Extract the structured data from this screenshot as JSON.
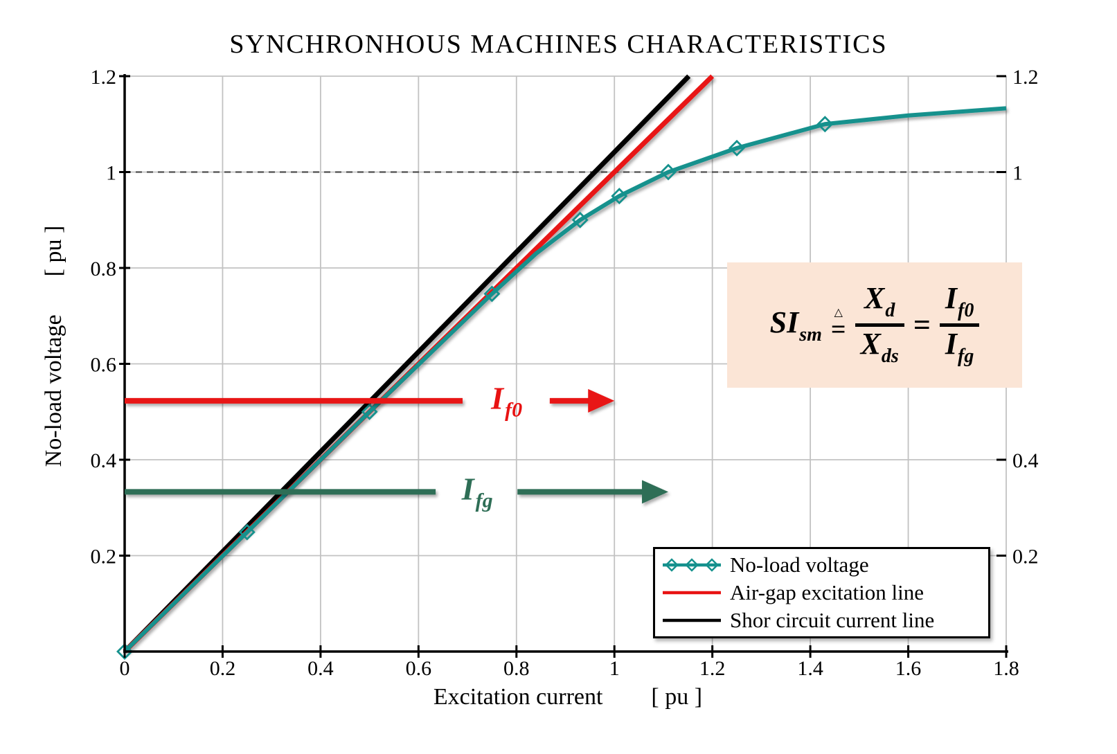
{
  "title": "SYNCHRONHOUS MACHINES CHARACTERISTICS",
  "colors": {
    "teal": "#15918d",
    "red": "#e81212",
    "dark_green": "#2e6e56",
    "black": "#000000",
    "grid": "#c2c2c2",
    "ref_gray": "#4d4d4d",
    "formula_bg": "#fbe5d6"
  },
  "axes": {
    "x_label": "Excitation current",
    "x_unit": "[ pu ]",
    "y_label": "No-load voltage",
    "y_unit": "[ pu ]",
    "x_tick_labels": [
      "0",
      "0.2",
      "0.4",
      "0.6",
      "0.8",
      "1",
      "1.2",
      "1.4",
      "1.6",
      "1.8"
    ],
    "y_tick_labels_left": [
      "0.2",
      "0.4",
      "0.6",
      "0.8",
      "1",
      "1.2"
    ],
    "y_tick_labels_right": [
      "0.2",
      "0.4",
      "1",
      "1.2"
    ]
  },
  "chart_data": {
    "type": "line",
    "title": "SYNCHRONHOUS MACHINES CHARACTERISTICS",
    "xlabel": "Excitation current [ pu ]",
    "ylabel": "No-load voltage [ pu ]",
    "xlim": [
      0,
      1.8
    ],
    "ylim": [
      0,
      1.2
    ],
    "x_ticks": [
      0,
      0.2,
      0.4,
      0.6,
      0.8,
      1,
      1.2,
      1.4,
      1.6,
      1.8
    ],
    "y_ticks": [
      0.2,
      0.4,
      0.6,
      0.8,
      1,
      1.2
    ],
    "right_axis_ticks": [
      0.2,
      0.4,
      1,
      1.2
    ],
    "dashed_gridline_y": 1,
    "series": [
      {
        "name": "No-load voltage",
        "color_key": "teal",
        "marker": "diamond",
        "points": [
          [
            0,
            0,
            1
          ],
          [
            0.25,
            0.249,
            1
          ],
          [
            0.5,
            0.5,
            1
          ],
          [
            0.75,
            0.746,
            1
          ],
          [
            0.84,
            0.83,
            0
          ],
          [
            0.93,
            0.9,
            1
          ],
          [
            1.01,
            0.95,
            1
          ],
          [
            1.11,
            1,
            1
          ],
          [
            1.25,
            1.05,
            1
          ],
          [
            1.43,
            1.1,
            1
          ],
          [
            1.6,
            1.118,
            0
          ],
          [
            1.8,
            1.133,
            0
          ]
        ]
      },
      {
        "name": "Air-gap excitation line",
        "color_key": "red",
        "marker": "none",
        "points": [
          [
            0,
            0,
            0
          ],
          [
            1.2,
            1.2,
            0
          ]
        ]
      },
      {
        "name": "Shor circuit current line",
        "color_key": "black",
        "marker": "none",
        "points": [
          [
            0,
            0,
            0
          ],
          [
            1.152,
            1.2,
            0
          ]
        ]
      }
    ],
    "vertical_dashed_lines": [
      {
        "x": 1,
        "color_key": "red"
      },
      {
        "x": 1.11,
        "color_key": "dark_green"
      }
    ],
    "annotations": [
      {
        "text": "I",
        "sub": "f0",
        "value_y": 0.523,
        "arrow_tip_x": 1,
        "shaft_break": 0.69,
        "shaft_resume": 0.868,
        "label_x": 0.78,
        "color_key": "red"
      },
      {
        "text": "I",
        "sub": "fg",
        "value_y": 0.333,
        "arrow_tip_x": 1.11,
        "shaft_break": 0.635,
        "shaft_resume": 0.802,
        "label_x": 0.72,
        "color_key": "dark_green"
      }
    ]
  },
  "legend": {
    "items": [
      {
        "label": "No-load voltage",
        "color_key": "teal",
        "marker": "diamond"
      },
      {
        "label": "Air-gap excitation line",
        "color_key": "red",
        "marker": "none"
      },
      {
        "label": "Shor circuit current line",
        "color_key": "black",
        "marker": "none"
      }
    ]
  },
  "formula": {
    "lhs": "SI",
    "lhs_sub": "sm",
    "defeq_top": "△",
    "defeq_eq": "=",
    "frac1_num": "X",
    "frac1_num_sub": "d",
    "frac1_den": "X",
    "frac1_den_sub": "ds",
    "equals": "=",
    "frac2_num": "I",
    "frac2_num_sub": "f0",
    "frac2_den": "I",
    "frac2_den_sub": "fg"
  }
}
